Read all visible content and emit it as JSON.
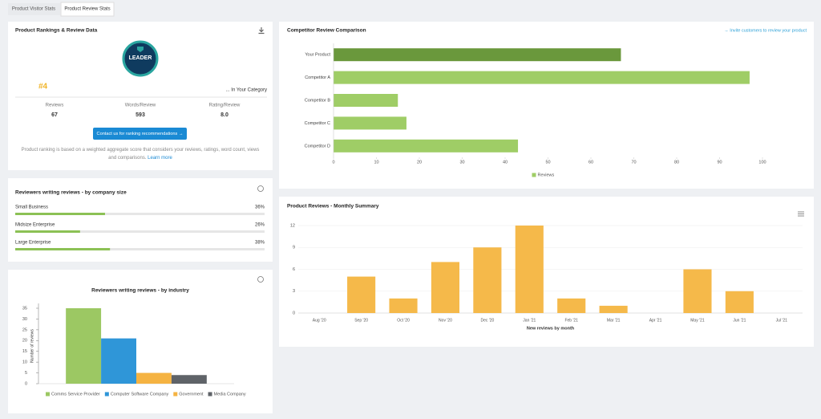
{
  "tabs": [
    "Product Visitor Stats",
    "Product Review Stats"
  ],
  "rankings": {
    "title": "Product Rankings & Review Data",
    "badge": "LEADER",
    "rank": "#4",
    "category": "... In Your Category",
    "stats": [
      {
        "label": "Reviews",
        "value": "67"
      },
      {
        "label": "Words/Review",
        "value": "593"
      },
      {
        "label": "Rating/Review",
        "value": "8.0"
      }
    ],
    "button": "Contact us for ranking recommendations →",
    "note": "Product ranking is based on a weighted aggregate score that considers your reviews, ratings, word count, views and comparisons.",
    "link": "Learn more"
  },
  "company_size": {
    "title": "Reviewers writing reviews - by company size",
    "xlim": [
      0,
      100
    ],
    "rows": [
      {
        "label": "Small Business",
        "value": 36,
        "value_label": "36%"
      },
      {
        "label": "Midsize Enterprise",
        "value": 26,
        "value_label": "26%"
      },
      {
        "label": "Large Enterprise",
        "value": 38,
        "value_label": "38%"
      }
    ]
  },
  "chart_data": [
    {
      "type": "bar",
      "title": "Reviewers writing reviews - by industry",
      "ylabel": "Number of reviews",
      "categories": [
        null
      ],
      "series": [
        {
          "name": "Comms Service Provider",
          "color": "#9cc863",
          "values": [
            35
          ]
        },
        {
          "name": "Computer Software Company",
          "color": "#2f96d8",
          "values": [
            21
          ]
        },
        {
          "name": "Government",
          "color": "#f5b342",
          "values": [
            5
          ]
        },
        {
          "name": "Media Company",
          "color": "#5f6368",
          "values": [
            4
          ]
        }
      ],
      "ylim": [
        0,
        35
      ],
      "yticks": [
        0,
        5,
        10,
        15,
        20,
        25,
        30,
        35
      ],
      "grid": false,
      "legend": "bottom"
    },
    {
      "type": "barh",
      "title": "Competitor Review Comparison",
      "link": "→ Invite customers to review your product",
      "categories": [
        "Your Product",
        "Competitor A",
        "Competitor B",
        "Competitor C",
        "Competitor D"
      ],
      "series": [
        {
          "name": "Reviews",
          "color": "#9fcd66",
          "values": [
            67,
            97,
            15,
            17,
            43
          ]
        }
      ],
      "bar_colors": [
        "#6a983c",
        "#9fcd66",
        "#9fcd66",
        "#9fcd66",
        "#9fcd66"
      ],
      "xlim": [
        0,
        100
      ],
      "xticks": [
        0,
        10,
        20,
        30,
        40,
        50,
        60,
        70,
        80,
        90,
        100
      ],
      "grid": false,
      "legend": "bottom"
    },
    {
      "type": "bar",
      "title": "Product Reviews - Monthly Summary",
      "xlabel": "New reviews by month",
      "categories": [
        "Aug '20",
        "Sep '20",
        "Oct '20",
        "Nov '20",
        "Dec '20",
        "Jan '21",
        "Feb '21",
        "Mar '21",
        "Apr '21",
        "May '21",
        "Jun '21",
        "Jul '21"
      ],
      "values": [
        0,
        5,
        2,
        7,
        9,
        12,
        2,
        1,
        0,
        6,
        3,
        0
      ],
      "color": "#f5b94a",
      "ylim": [
        0,
        12
      ],
      "yticks": [
        0,
        3,
        6,
        9,
        12
      ],
      "grid": true
    }
  ]
}
